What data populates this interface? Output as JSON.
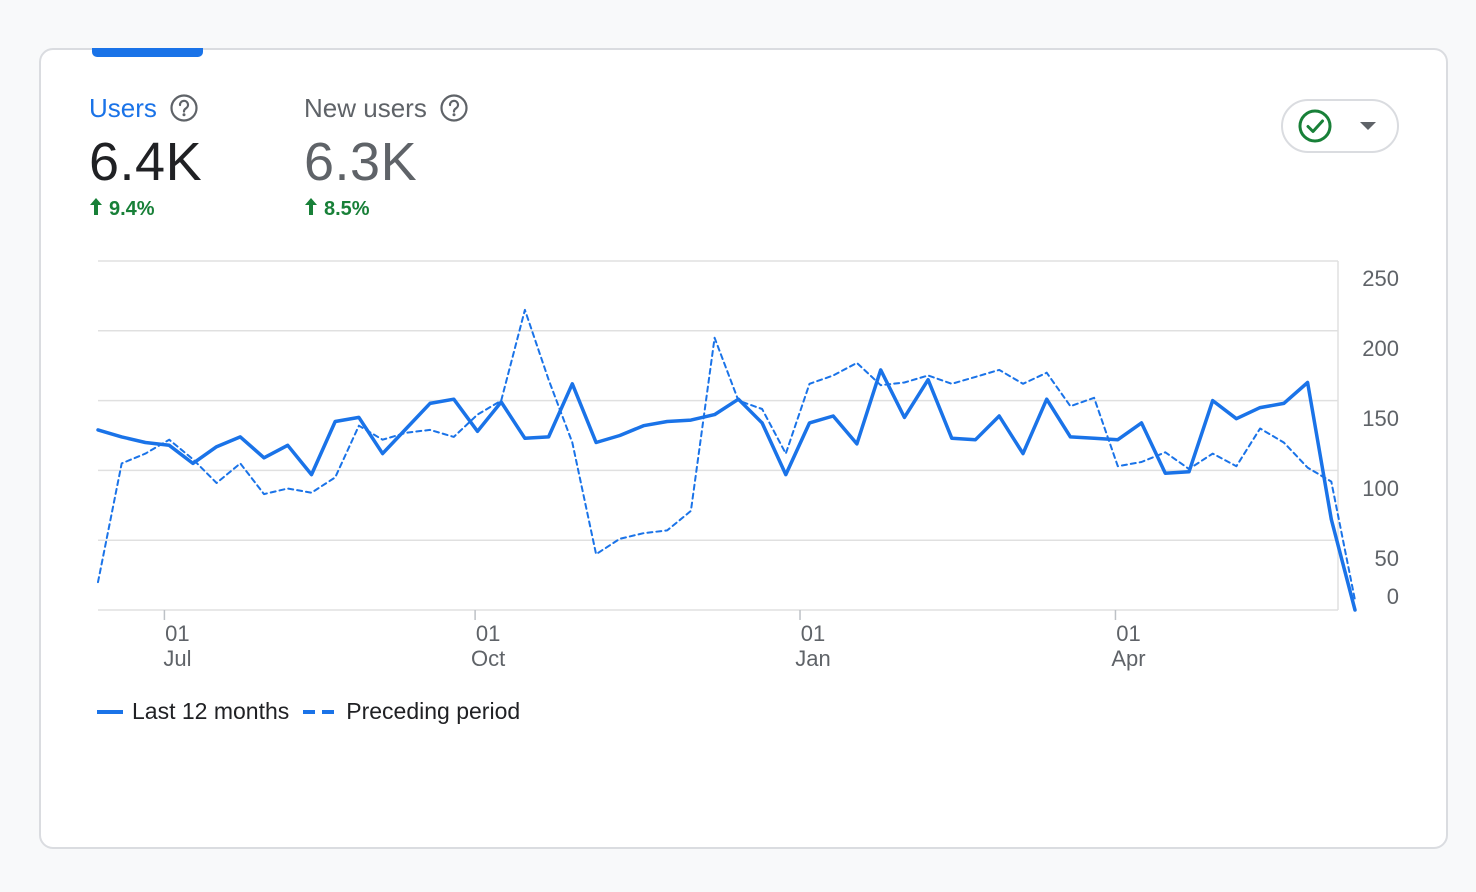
{
  "metrics": [
    {
      "label": "Users",
      "value": "6.4K",
      "change": "9.4%",
      "active": true
    },
    {
      "label": "New users",
      "value": "6.3K",
      "change": "8.5%",
      "active": false
    }
  ],
  "icons": {
    "help": "help-circle-icon",
    "status": "check-circle-icon",
    "dropdown": "caret-down-icon",
    "change": "arrow-up-icon"
  },
  "colors": {
    "accent": "#1a73e8",
    "positive": "#188038",
    "muted": "#5f6368",
    "grid": "#e0e0e0"
  },
  "legend": [
    "Last 12 months",
    "Preceding period"
  ],
  "chart_data": {
    "type": "line",
    "y_ticks": [
      "250",
      "200",
      "150",
      "100",
      "50",
      "0"
    ],
    "ylim": [
      0,
      250
    ],
    "x_ticks": [
      {
        "day": "01",
        "month": "Jul",
        "index": 2.8
      },
      {
        "day": "01",
        "month": "Oct",
        "index": 15.9
      },
      {
        "day": "01",
        "month": "Jan",
        "index": 29.6
      },
      {
        "day": "01",
        "month": "Apr",
        "index": 42.9
      }
    ],
    "grid": true,
    "series": [
      {
        "name": "Last 12 months",
        "style": "solid",
        "values": [
          129,
          124,
          120,
          118,
          105,
          117,
          124,
          109,
          118,
          97,
          135,
          138,
          112,
          130,
          148,
          151,
          128,
          149,
          123,
          124,
          162,
          120,
          125,
          132,
          135,
          136,
          140,
          151,
          134,
          97,
          134,
          139,
          119,
          172,
          138,
          165,
          123,
          122,
          139,
          112,
          151,
          124,
          123,
          122,
          134,
          98,
          99,
          150,
          137,
          145,
          148,
          163,
          65,
          0
        ]
      },
      {
        "name": "Preceding period",
        "style": "dashed",
        "values": [
          20,
          105,
          112,
          122,
          108,
          91,
          105,
          83,
          87,
          84,
          95,
          132,
          122,
          127,
          129,
          124,
          140,
          150,
          215,
          165,
          120,
          40,
          51,
          55,
          57,
          71,
          195,
          150,
          144,
          112,
          162,
          168,
          177,
          161,
          163,
          168,
          162,
          167,
          172,
          162,
          170,
          146,
          152,
          103,
          106,
          113,
          101,
          112,
          103,
          130,
          120,
          102,
          92,
          7
        ]
      }
    ]
  }
}
